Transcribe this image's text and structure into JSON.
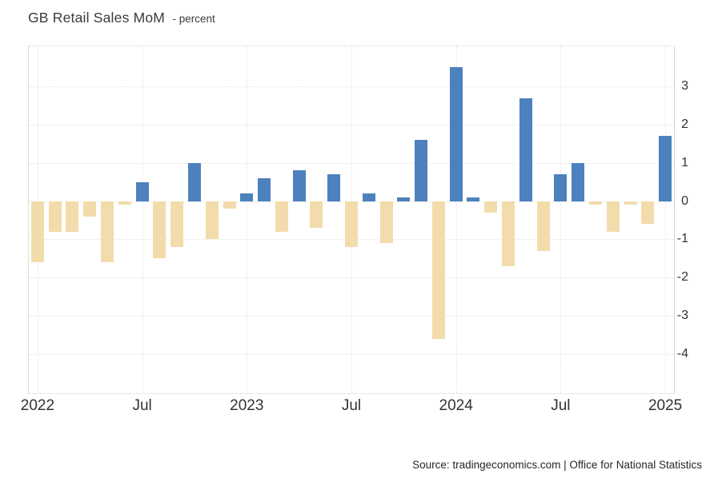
{
  "title": {
    "main": "GB Retail Sales MoM",
    "unit": "- percent"
  },
  "source": "Source: tradingeconomics.com | Office for National Statistics",
  "chart_data": {
    "type": "bar",
    "title": "GB Retail Sales MoM",
    "ylabel": "percent",
    "xlabel": "",
    "grid": "dotted",
    "legend": "none",
    "ylim": [
      -5.03,
      4.05
    ],
    "y_ticks": [
      3,
      2,
      1,
      0,
      -1,
      -2,
      -3,
      -4
    ],
    "x": [
      "Jan 2022",
      "Feb 2022",
      "Mar 2022",
      "Apr 2022",
      "May 2022",
      "Jun 2022",
      "Jul 2022",
      "Aug 2022",
      "Sep 2022",
      "Oct 2022",
      "Nov 2022",
      "Dec 2022",
      "Jan 2023",
      "Feb 2023",
      "Mar 2023",
      "Apr 2023",
      "May 2023",
      "Jun 2023",
      "Jul 2023",
      "Aug 2023",
      "Sep 2023",
      "Oct 2023",
      "Nov 2023",
      "Dec 2023",
      "Jan 2024",
      "Feb 2024",
      "Mar 2024",
      "Apr 2024",
      "May 2024",
      "Jun 2024",
      "Jul 2024",
      "Aug 2024",
      "Sep 2024",
      "Oct 2024",
      "Nov 2024",
      "Dec 2024",
      "Jan 2025"
    ],
    "values": [
      -1.6,
      -0.8,
      -0.8,
      -0.4,
      -1.6,
      -0.1,
      0.5,
      -1.5,
      -1.2,
      1.0,
      -1.0,
      -0.2,
      0.2,
      0.6,
      -0.8,
      0.8,
      -0.7,
      0.7,
      -1.2,
      0.2,
      -1.1,
      0.1,
      1.6,
      -3.6,
      3.5,
      0.1,
      -0.3,
      -1.7,
      2.7,
      -1.3,
      0.7,
      1.0,
      -0.1,
      -0.8,
      -0.1,
      -0.6,
      1.7
    ],
    "x_tick_labels": [
      {
        "index": 0,
        "label": "2022"
      },
      {
        "index": 6,
        "label": "Jul"
      },
      {
        "index": 12,
        "label": "2023"
      },
      {
        "index": 18,
        "label": "Jul"
      },
      {
        "index": 24,
        "label": "2024"
      },
      {
        "index": 30,
        "label": "Jul"
      },
      {
        "index": 36,
        "label": "2025"
      }
    ],
    "bar_colors": {
      "positive": "#4d81bd",
      "negative": "#f3dcab"
    }
  }
}
